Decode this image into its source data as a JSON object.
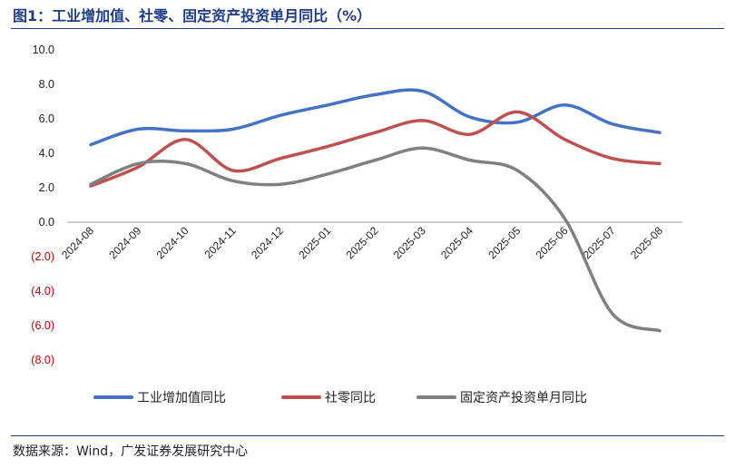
{
  "figure": {
    "title": "图1：工业增加值、社零、固定资产投资单月同比（%）",
    "source": "数据来源：Wind，广发证券发展研究中心"
  },
  "chart_data": {
    "type": "line",
    "title": "",
    "xlabel": "",
    "ylabel": "",
    "ylim": [
      -8,
      10
    ],
    "yticks": [
      10,
      8,
      6,
      4,
      2,
      0,
      -2,
      -4,
      -6,
      -8
    ],
    "ytick_labels": [
      "10.0",
      "8.0",
      "6.0",
      "4.0",
      "2.0",
      "0.0",
      "(2.0)",
      "(4.0)",
      "(6.0)",
      "(8.0)"
    ],
    "negative_tick_color": "#c00000",
    "grid": false,
    "legend_position": "bottom",
    "categories": [
      "2024-08",
      "2024-09",
      "2024-10",
      "2024-11",
      "2024-12",
      "2025-01",
      "2025-02",
      "2025-03",
      "2025-04",
      "2025-05",
      "2025-06",
      "2025-07",
      "2025-08"
    ],
    "series": [
      {
        "name": "工业增加值同比",
        "color": "#4472c4",
        "values": [
          4.5,
          5.4,
          5.3,
          5.4,
          6.2,
          6.8,
          7.4,
          7.6,
          6.1,
          5.8,
          6.8,
          5.7,
          5.2
        ]
      },
      {
        "name": "社零同比",
        "color": "#c0504d",
        "values": [
          2.1,
          3.2,
          4.8,
          3.0,
          3.7,
          4.4,
          5.2,
          5.9,
          5.1,
          6.4,
          4.8,
          3.7,
          3.4
        ]
      },
      {
        "name": "固定资产投资单月同比",
        "color": "#808080",
        "values": [
          2.2,
          3.4,
          3.4,
          2.4,
          2.2,
          2.8,
          3.6,
          4.3,
          3.6,
          3.0,
          0.2,
          -5.3,
          -6.3
        ]
      }
    ]
  }
}
